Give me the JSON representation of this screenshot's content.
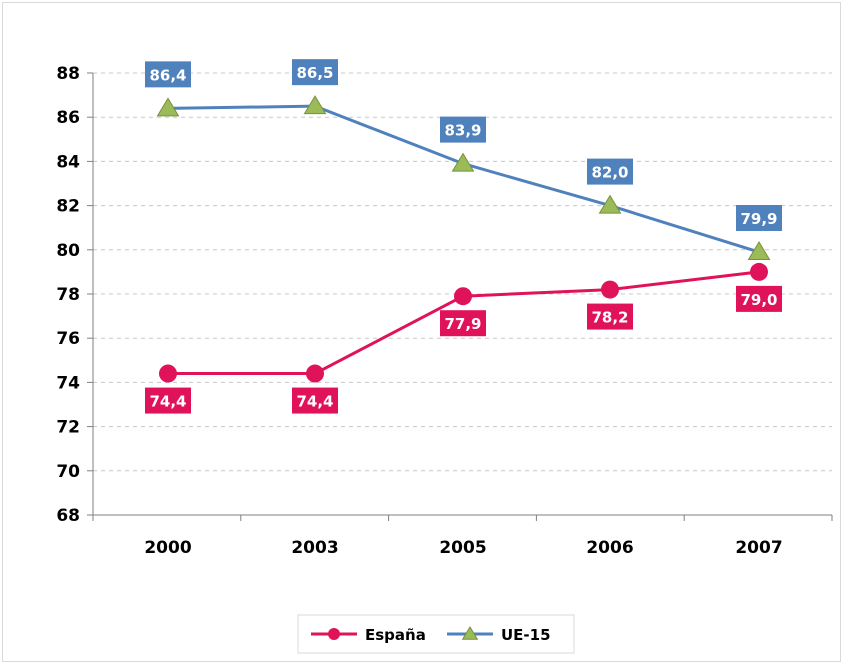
{
  "chart_data": {
    "type": "line",
    "title": "",
    "xlabel": "",
    "ylabel": "",
    "categories": [
      "2000",
      "2003",
      "2005",
      "2006",
      "2007"
    ],
    "ylim": [
      68,
      88
    ],
    "yticks": [
      68,
      70,
      72,
      74,
      76,
      78,
      80,
      82,
      84,
      86,
      88
    ],
    "grid": "horizontal-dashed",
    "legend_position": "bottom",
    "series": [
      {
        "name": "España",
        "values": [
          74.4,
          74.4,
          77.9,
          78.2,
          79.0
        ],
        "labels": [
          "74,4",
          "74,4",
          "77,9",
          "78,2",
          "79,0"
        ],
        "color": "#e0135a",
        "marker": "circle",
        "label_position": "below"
      },
      {
        "name": "UE-15",
        "values": [
          86.4,
          86.5,
          83.9,
          82.0,
          79.9
        ],
        "labels": [
          "86,4",
          "86,5",
          "83,9",
          "82,0",
          "79,9"
        ],
        "color": "#4f81bd",
        "marker": "triangle",
        "marker_color": "#9bbb59",
        "label_position": "above"
      }
    ]
  }
}
